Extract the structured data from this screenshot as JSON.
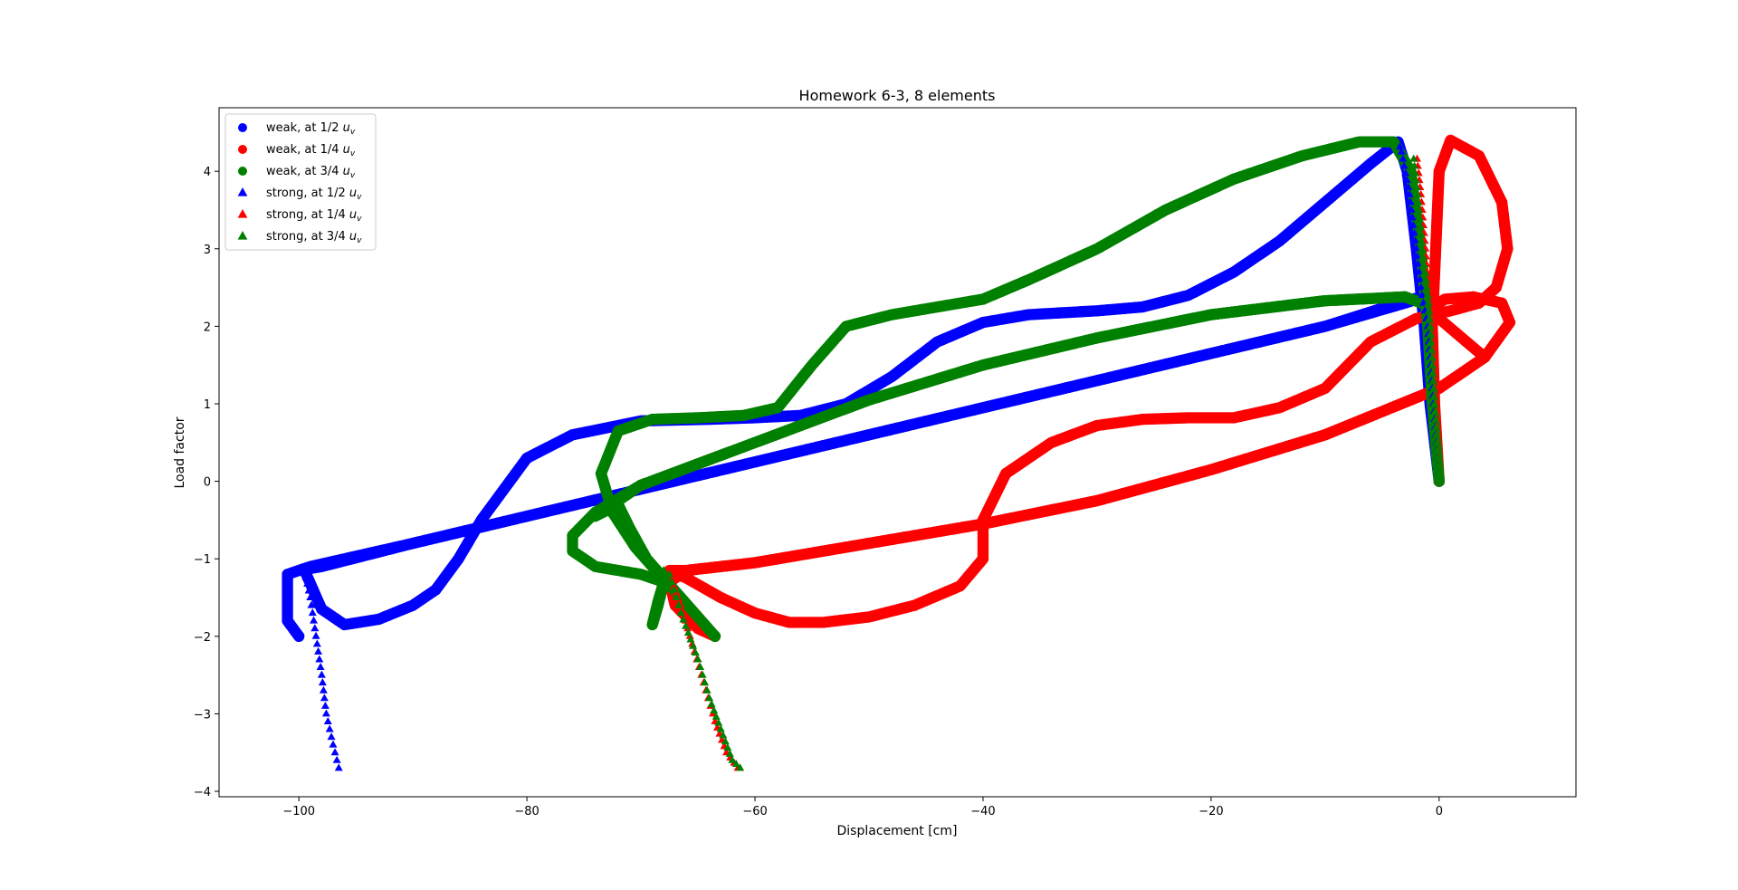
{
  "chart_data": {
    "type": "scatter",
    "title": "Homework 6-3, 8 elements",
    "xlabel": "Displacement [cm]",
    "ylabel": "Load factor",
    "xlim": [
      -107,
      12
    ],
    "ylim": [
      -4.07,
      4.82
    ],
    "xticks": [
      -100,
      -80,
      -60,
      -40,
      -20,
      0
    ],
    "xtick_labels": [
      "−100",
      "−80",
      "−60",
      "−40",
      "−20",
      "0"
    ],
    "yticks": [
      -4,
      -3,
      -2,
      -1,
      0,
      1,
      2,
      3,
      4
    ],
    "ytick_labels": [
      "−4",
      "−3",
      "−2",
      "−1",
      "0",
      "1",
      "2",
      "3",
      "4"
    ],
    "grid": false,
    "legend_position": "upper-left",
    "series": [
      {
        "name": "weak, at 1/2 uᵥ",
        "legend_main": "weak, at 1/2 ",
        "legend_sub": "v",
        "marker": "circle",
        "color": "#0000ff",
        "points": [
          [
            0,
            0
          ],
          [
            -0.8,
            1.0
          ],
          [
            -1.3,
            2.0
          ],
          [
            -2.0,
            3.0
          ],
          [
            -2.8,
            4.0
          ],
          [
            -3.6,
            4.38
          ],
          [
            -6,
            4.1
          ],
          [
            -10,
            3.6
          ],
          [
            -14,
            3.1
          ],
          [
            -18,
            2.7
          ],
          [
            -22,
            2.4
          ],
          [
            -26,
            2.25
          ],
          [
            -30,
            2.2
          ],
          [
            -36,
            2.15
          ],
          [
            -40,
            2.05
          ],
          [
            -44,
            1.8
          ],
          [
            -48,
            1.35
          ],
          [
            -52,
            1.0
          ],
          [
            -56,
            0.85
          ],
          [
            -60,
            0.82
          ],
          [
            -64,
            0.8
          ],
          [
            -70,
            0.78
          ],
          [
            -76,
            0.6
          ],
          [
            -80,
            0.3
          ],
          [
            -84,
            -0.5
          ],
          [
            -86,
            -1.0
          ],
          [
            -88,
            -1.4
          ],
          [
            -90,
            -1.6
          ],
          [
            -93,
            -1.78
          ],
          [
            -96,
            -1.85
          ],
          [
            -98,
            -1.65
          ],
          [
            -99.5,
            -1.15
          ],
          [
            -100,
            -1.15
          ],
          [
            -98,
            -1.1
          ],
          [
            -90,
            -0.8
          ],
          [
            -80,
            -0.45
          ],
          [
            -70,
            -0.1
          ],
          [
            -60,
            0.25
          ],
          [
            -50,
            0.6
          ],
          [
            -40,
            0.95
          ],
          [
            -30,
            1.3
          ],
          [
            -20,
            1.65
          ],
          [
            -10,
            2.0
          ],
          [
            -3,
            2.3
          ],
          [
            -1.5,
            2.37
          ],
          [
            -2.5,
            2.35
          ],
          [
            -10,
            2.0
          ],
          [
            -20,
            1.65
          ],
          [
            -30,
            1.3
          ],
          [
            -40,
            0.95
          ],
          [
            -50,
            0.6
          ],
          [
            -60,
            0.25
          ],
          [
            -70,
            -0.1
          ],
          [
            -80,
            -0.45
          ],
          [
            -90,
            -0.8
          ],
          [
            -99,
            -1.1
          ],
          [
            -101,
            -1.2
          ],
          [
            -101,
            -1.8
          ],
          [
            -100,
            -2.0
          ]
        ]
      },
      {
        "name": "weak, at 1/4 uᵥ",
        "legend_main": "weak, at 1/4 ",
        "legend_sub": "v",
        "marker": "circle",
        "color": "#ff0000",
        "points": [
          [
            0,
            0
          ],
          [
            -0.4,
            1.0
          ],
          [
            -0.6,
            2.0
          ],
          [
            -0.3,
            3.0
          ],
          [
            0,
            4.0
          ],
          [
            1.0,
            4.4
          ],
          [
            3.5,
            4.2
          ],
          [
            5.5,
            3.6
          ],
          [
            6,
            3.0
          ],
          [
            5,
            2.5
          ],
          [
            3.5,
            2.3
          ],
          [
            1,
            2.2
          ],
          [
            -2,
            2.1
          ],
          [
            -6,
            1.8
          ],
          [
            -10,
            1.2
          ],
          [
            -14,
            0.95
          ],
          [
            -18,
            0.82
          ],
          [
            -22,
            0.82
          ],
          [
            -26,
            0.8
          ],
          [
            -30,
            0.72
          ],
          [
            -34,
            0.5
          ],
          [
            -38,
            0.1
          ],
          [
            -40,
            -0.5
          ],
          [
            -40,
            -1.0
          ],
          [
            -42,
            -1.35
          ],
          [
            -46,
            -1.6
          ],
          [
            -50,
            -1.75
          ],
          [
            -54,
            -1.82
          ],
          [
            -57,
            -1.82
          ],
          [
            -60,
            -1.7
          ],
          [
            -63,
            -1.5
          ],
          [
            -66,
            -1.25
          ],
          [
            -67.5,
            -1.15
          ],
          [
            -66,
            -1.15
          ],
          [
            -60,
            -1.05
          ],
          [
            -50,
            -0.8
          ],
          [
            -40,
            -0.55
          ],
          [
            -30,
            -0.25
          ],
          [
            -20,
            0.15
          ],
          [
            -10,
            0.6
          ],
          [
            0,
            1.2
          ],
          [
            4,
            1.6
          ],
          [
            6.2,
            2.05
          ],
          [
            5.5,
            2.3
          ],
          [
            3,
            2.38
          ],
          [
            0.5,
            2.35
          ],
          [
            -1,
            2.2
          ],
          [
            0,
            2.1
          ],
          [
            4,
            1.6
          ],
          [
            0,
            1.2
          ],
          [
            -10,
            0.6
          ],
          [
            -20,
            0.15
          ],
          [
            -30,
            -0.25
          ],
          [
            -40,
            -0.55
          ],
          [
            -50,
            -0.8
          ],
          [
            -60,
            -1.05
          ],
          [
            -66,
            -1.15
          ],
          [
            -67.5,
            -1.3
          ],
          [
            -67,
            -1.6
          ],
          [
            -65,
            -1.9
          ],
          [
            -63.5,
            -2.0
          ]
        ]
      },
      {
        "name": "weak, at 3/4 uᵥ",
        "legend_main": "weak, at 3/4 ",
        "legend_sub": "v",
        "marker": "circle",
        "color": "#008000",
        "points": [
          [
            0,
            0
          ],
          [
            -0.6,
            1.0
          ],
          [
            -1.0,
            2.0
          ],
          [
            -1.6,
            3.0
          ],
          [
            -2.5,
            4.0
          ],
          [
            -4,
            4.38
          ],
          [
            -7,
            4.38
          ],
          [
            -12,
            4.2
          ],
          [
            -18,
            3.9
          ],
          [
            -24,
            3.5
          ],
          [
            -30,
            3.0
          ],
          [
            -36,
            2.6
          ],
          [
            -40,
            2.35
          ],
          [
            -44,
            2.25
          ],
          [
            -48,
            2.15
          ],
          [
            -52,
            2.0
          ],
          [
            -55,
            1.5
          ],
          [
            -58,
            0.95
          ],
          [
            -61,
            0.85
          ],
          [
            -65,
            0.82
          ],
          [
            -69,
            0.8
          ],
          [
            -72,
            0.65
          ],
          [
            -73.5,
            0.1
          ],
          [
            -72.5,
            -0.4
          ],
          [
            -70.5,
            -0.85
          ],
          [
            -69,
            -1.1
          ],
          [
            -68,
            -1.3
          ],
          [
            -68.5,
            -1.6
          ],
          [
            -69,
            -1.85
          ],
          [
            -68.5,
            -1.55
          ],
          [
            -68,
            -1.3
          ],
          [
            -70,
            -1.2
          ],
          [
            -74,
            -1.1
          ],
          [
            -76,
            -0.9
          ],
          [
            -76,
            -0.7
          ],
          [
            -74,
            -0.4
          ],
          [
            -70,
            -0.05
          ],
          [
            -60,
            0.5
          ],
          [
            -50,
            1.05
          ],
          [
            -40,
            1.5
          ],
          [
            -30,
            1.85
          ],
          [
            -20,
            2.15
          ],
          [
            -10,
            2.33
          ],
          [
            -3,
            2.38
          ],
          [
            -1.5,
            2.3
          ],
          [
            -3,
            2.38
          ],
          [
            -10,
            2.33
          ],
          [
            -20,
            2.15
          ],
          [
            -30,
            1.85
          ],
          [
            -40,
            1.5
          ],
          [
            -50,
            1.05
          ],
          [
            -60,
            0.5
          ],
          [
            -70,
            -0.05
          ],
          [
            -74,
            -0.45
          ],
          [
            -72,
            -0.3
          ],
          [
            -71,
            -0.6
          ],
          [
            -69.5,
            -1.0
          ],
          [
            -68,
            -1.25
          ],
          [
            -66.5,
            -1.5
          ],
          [
            -65,
            -1.75
          ],
          [
            -63.5,
            -2.0
          ]
        ]
      },
      {
        "name": "strong, at 1/2 uᵥ",
        "legend_main": "strong, at 1/2 ",
        "legend_sub": "v",
        "marker": "triangle",
        "color": "#0000ff",
        "points": [
          [
            0,
            0
          ],
          [
            -0.5,
            1.0
          ],
          [
            -1.0,
            2.0
          ],
          [
            -1.5,
            2.4
          ],
          [
            -2.0,
            3.0
          ],
          [
            -2.6,
            3.7
          ],
          [
            -3.3,
            4.25
          ],
          [
            -3.6,
            4.38
          ],
          [
            -99.5,
            -1.15
          ],
          [
            -99,
            -1.5
          ],
          [
            -98.5,
            -2.0
          ],
          [
            -98,
            -2.5
          ],
          [
            -97.6,
            -3.0
          ],
          [
            -97,
            -3.4
          ],
          [
            -96.5,
            -3.7
          ]
        ]
      },
      {
        "name": "strong, at 1/4 uᵥ",
        "legend_main": "strong, at 1/4 ",
        "legend_sub": "v",
        "marker": "triangle",
        "color": "#ff0000",
        "points": [
          [
            0,
            0
          ],
          [
            -0.3,
            1.0
          ],
          [
            -0.7,
            2.0
          ],
          [
            -0.9,
            2.3
          ],
          [
            -1.2,
            3.0
          ],
          [
            -1.6,
            3.7
          ],
          [
            -2.0,
            4.25
          ],
          [
            -67.5,
            -1.2
          ],
          [
            -66.5,
            -1.6
          ],
          [
            -65.5,
            -2.1
          ],
          [
            -64.5,
            -2.6
          ],
          [
            -63.5,
            -3.1
          ],
          [
            -62.5,
            -3.5
          ],
          [
            -61.5,
            -3.7
          ]
        ]
      },
      {
        "name": "strong, at 3/4 uᵥ",
        "legend_main": "strong, at 3/4 ",
        "legend_sub": "v",
        "marker": "triangle",
        "color": "#008000",
        "points": [
          [
            0,
            0
          ],
          [
            -0.4,
            1.0
          ],
          [
            -0.8,
            2.0
          ],
          [
            -1.0,
            2.4
          ],
          [
            -1.5,
            3.0
          ],
          [
            -1.9,
            3.7
          ],
          [
            -2.3,
            4.25
          ],
          [
            -68,
            -1.15
          ],
          [
            -68.5,
            -1.5
          ],
          [
            -69,
            -1.85
          ],
          [
            -67.5,
            -1.2
          ],
          [
            -66.5,
            -1.7
          ],
          [
            -65,
            -2.3
          ],
          [
            -64,
            -2.8
          ],
          [
            -63,
            -3.2
          ],
          [
            -62,
            -3.6
          ],
          [
            -61.3,
            -3.7
          ]
        ]
      }
    ]
  }
}
